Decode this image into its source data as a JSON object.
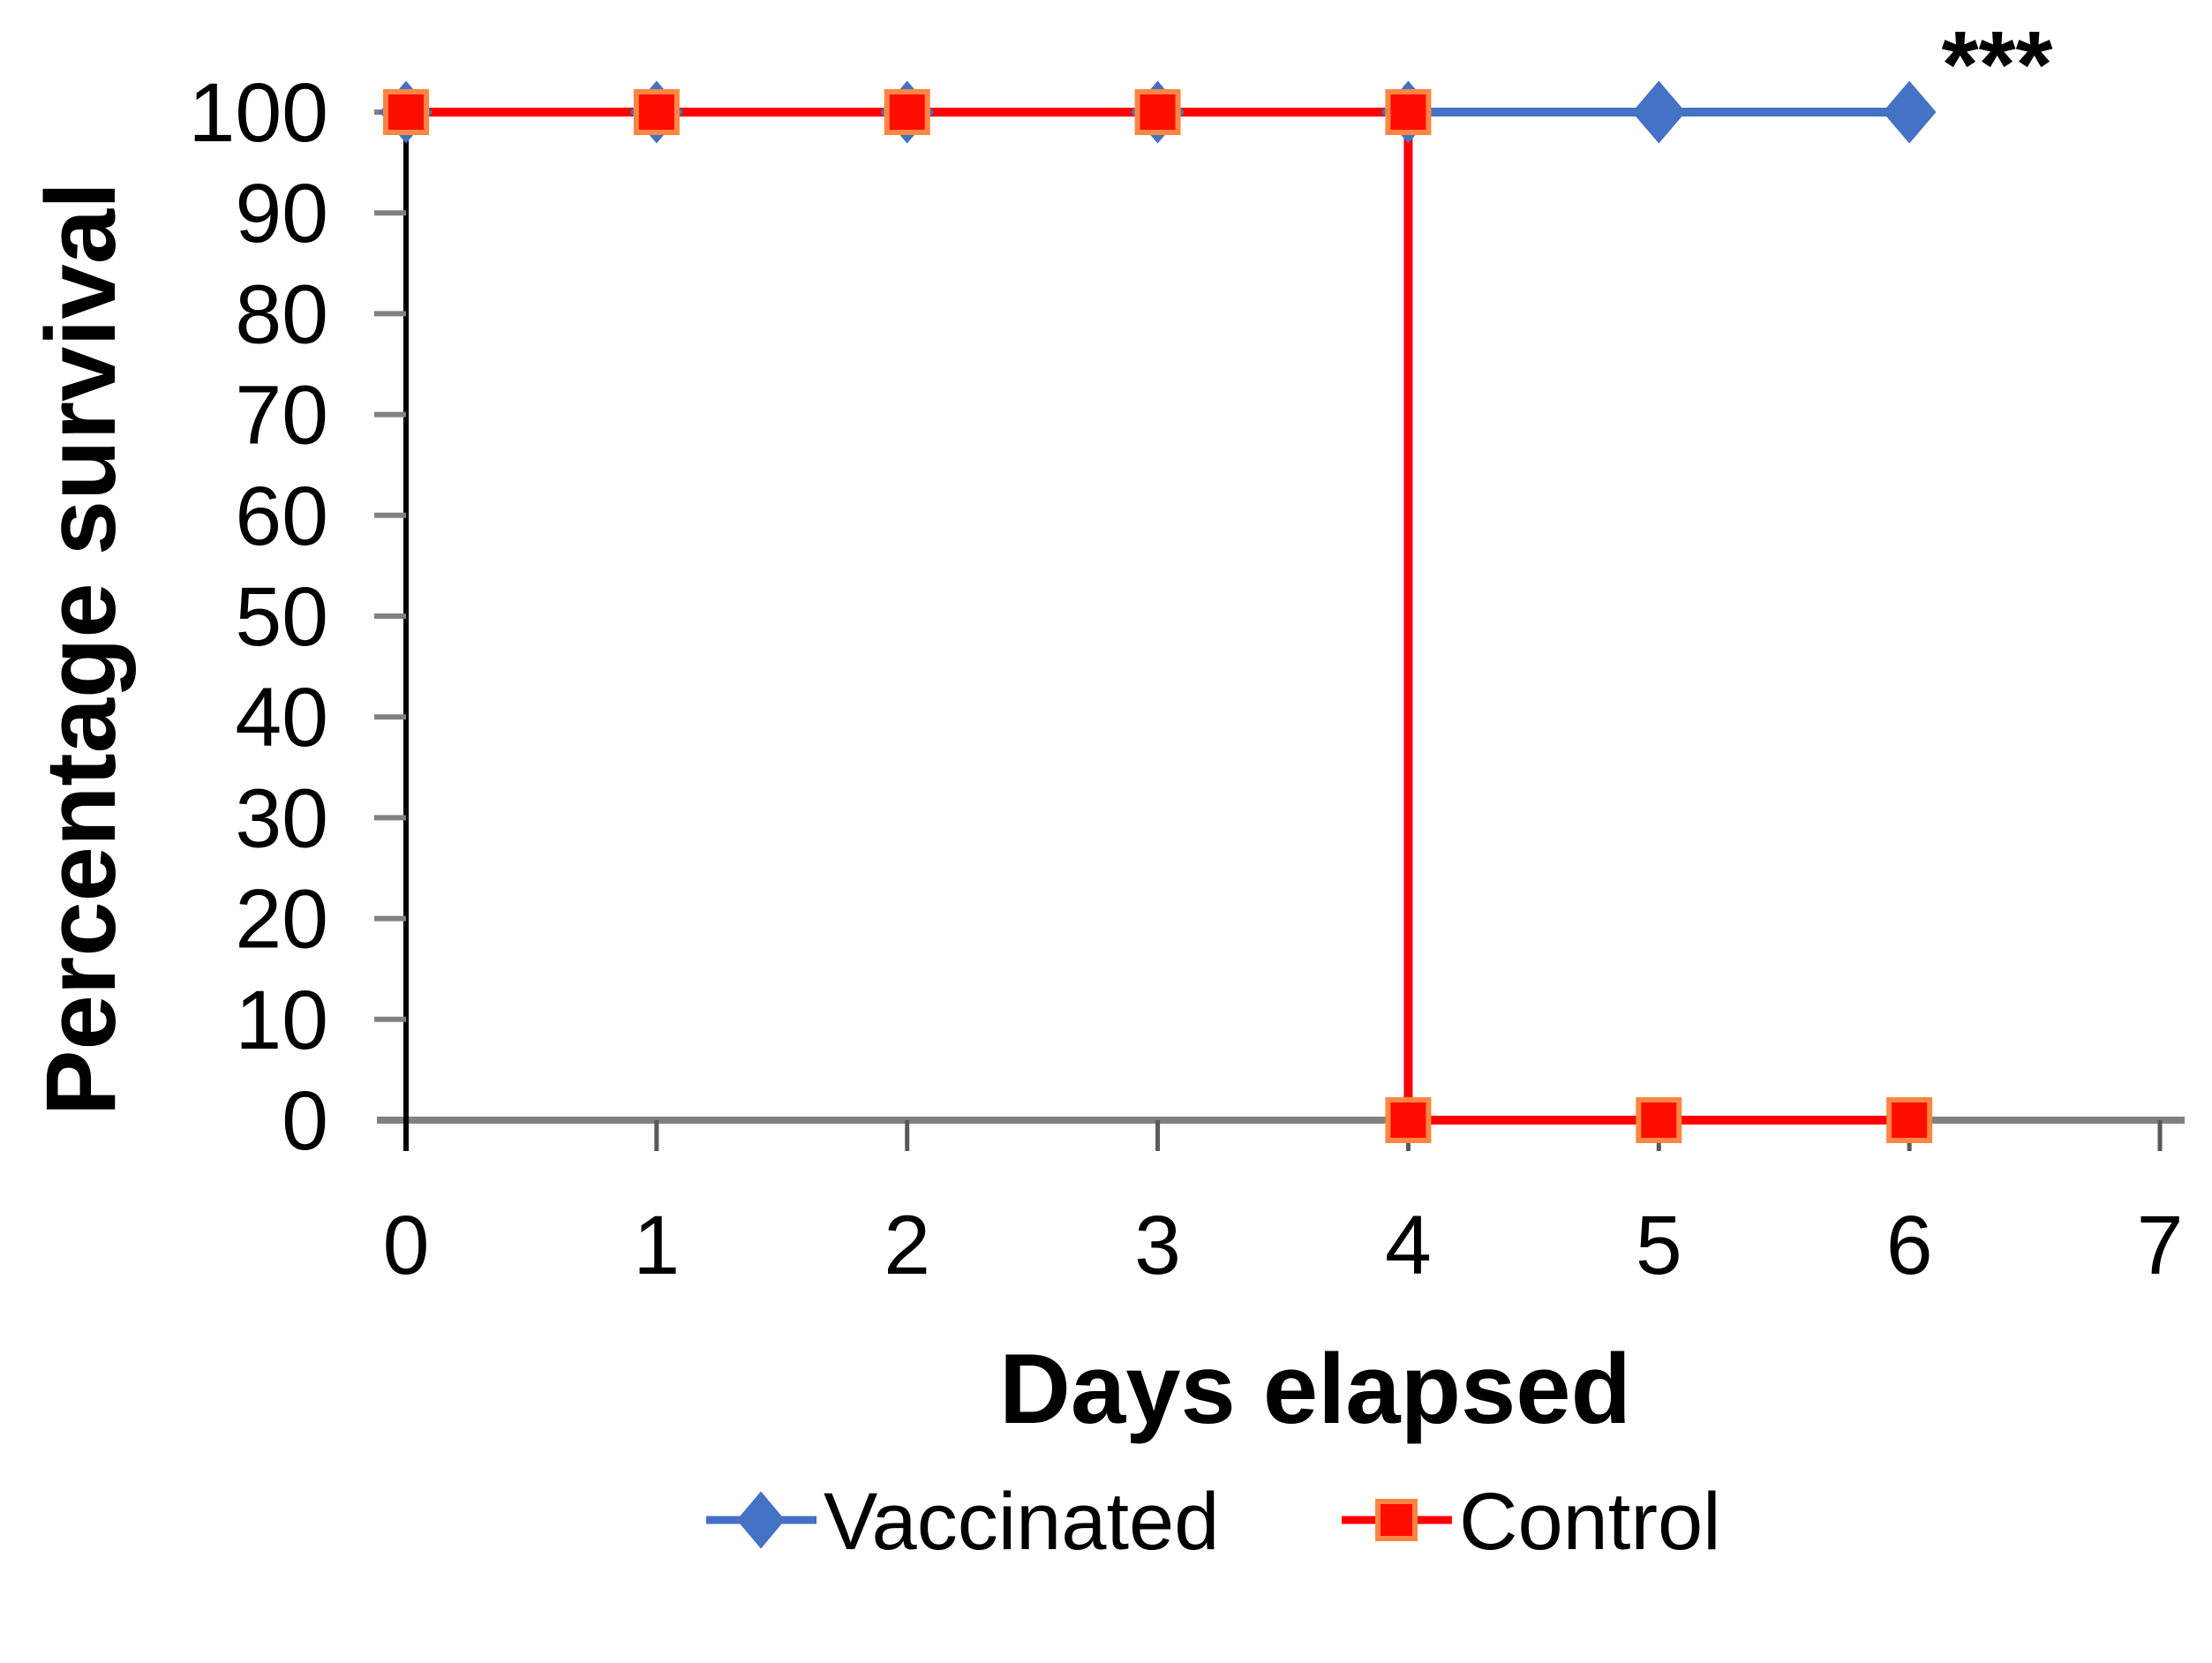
{
  "chart_data": {
    "type": "line",
    "subtype": "step-survival",
    "title": "",
    "xlabel": "Days elapsed",
    "ylabel": "Percentage survival",
    "xlim": [
      0,
      7
    ],
    "ylim": [
      0,
      100
    ],
    "x_ticks": [
      0,
      1,
      2,
      3,
      4,
      5,
      6,
      7
    ],
    "y_ticks": [
      0,
      10,
      20,
      30,
      40,
      50,
      60,
      70,
      80,
      90,
      100
    ],
    "grid": false,
    "legend_position": "bottom",
    "annotation": {
      "text": "***",
      "x": 6.35,
      "y": 100
    },
    "axis_colors": {
      "x_axis": "#808080",
      "y_axis": "#000000",
      "ticks": "#808080"
    },
    "series": [
      {
        "name": "Vaccinated",
        "marker": "diamond",
        "line_color": "#4472C4",
        "marker_fill": "#4472C4",
        "marker_border": "#4472C4",
        "x": [
          0,
          1,
          2,
          3,
          4,
          5,
          6
        ],
        "y": [
          100,
          100,
          100,
          100,
          100,
          100,
          100
        ]
      },
      {
        "name": "Control",
        "marker": "square",
        "line_color": "#FF0000",
        "marker_fill": "#FF0D00",
        "marker_border": "#FF8642",
        "x": [
          0,
          1,
          2,
          3,
          4,
          4,
          5,
          6
        ],
        "y": [
          100,
          100,
          100,
          100,
          100,
          0,
          0,
          0
        ]
      }
    ]
  }
}
